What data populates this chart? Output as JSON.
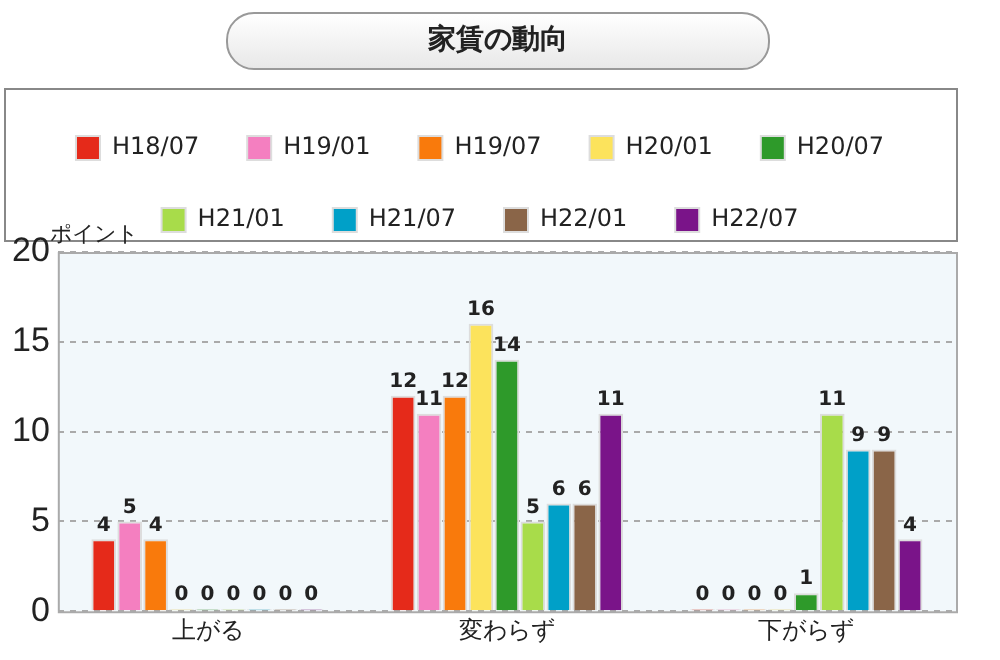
{
  "chart_data": {
    "type": "bar",
    "title": "家賃の動向",
    "ylabel": "ポイント",
    "categories": [
      "上がる",
      "変わらず",
      "下がらず"
    ],
    "series": [
      {
        "name": "H18/07",
        "color": "#e52a1a",
        "values": [
          4,
          12,
          0
        ]
      },
      {
        "name": "H19/01",
        "color": "#f47fc0",
        "values": [
          5,
          11,
          0
        ]
      },
      {
        "name": "H19/07",
        "color": "#f97a0c",
        "values": [
          4,
          12,
          0
        ]
      },
      {
        "name": "H20/01",
        "color": "#fce35c",
        "values": [
          0,
          16,
          0
        ]
      },
      {
        "name": "H20/07",
        "color": "#2e9a2a",
        "values": [
          0,
          14,
          1
        ]
      },
      {
        "name": "H21/01",
        "color": "#a8dc4a",
        "values": [
          0,
          5,
          11
        ]
      },
      {
        "name": "H21/07",
        "color": "#00a0c8",
        "values": [
          0,
          6,
          9
        ]
      },
      {
        "name": "H22/01",
        "color": "#8a6548",
        "values": [
          0,
          6,
          9
        ]
      },
      {
        "name": "H22/07",
        "color": "#7a1489",
        "values": [
          0,
          11,
          4
        ]
      }
    ],
    "ylim": [
      0,
      20
    ],
    "yticks": [
      0,
      5,
      10,
      15,
      20
    ],
    "grid": "y",
    "legend": "top",
    "data_labels": true
  }
}
